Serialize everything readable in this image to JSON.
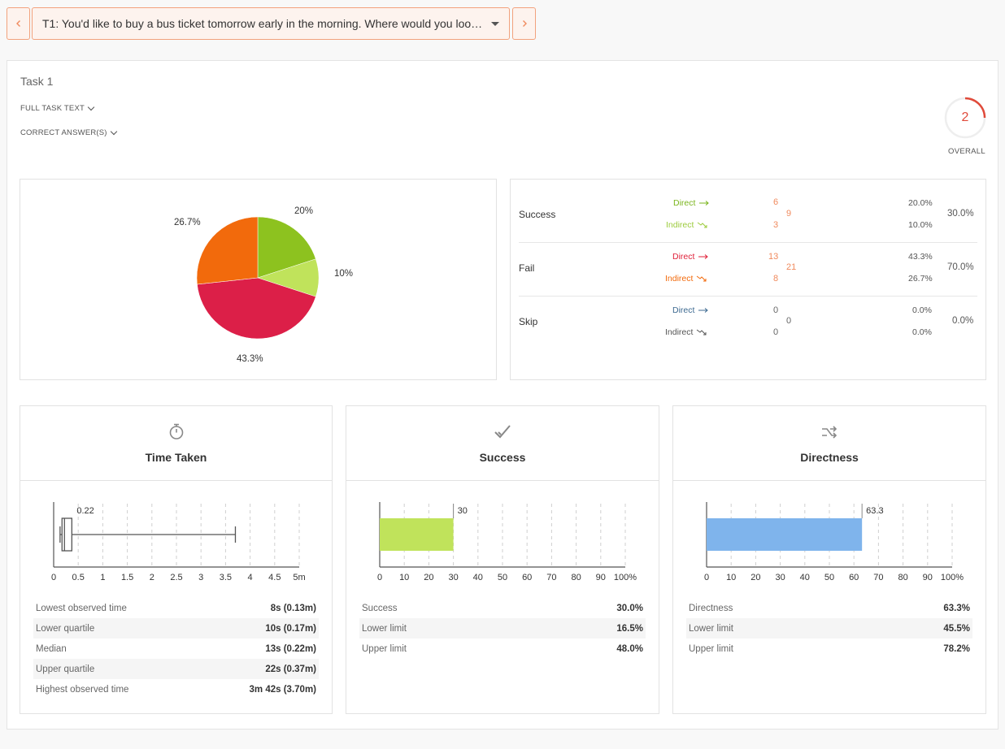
{
  "nav": {
    "task_select": "T1: You'd like to buy a bus ticket tomorrow early in the morning. Where would you loo…"
  },
  "task": {
    "title": "Task 1",
    "full_task_text_label": "FULL TASK TEXT",
    "correct_answers_label": "CORRECT ANSWER(S)",
    "overall_score": "2",
    "overall_label": "OVERALL"
  },
  "colors": {
    "accent": "#f08a5d",
    "direct_success": "#8dc21f",
    "indirect_success": "#c0e35b",
    "direct_fail": "#dc1f48",
    "indirect_fail": "#f26a0c",
    "success_bar": "#c0e35b",
    "directness_bar": "#7fb4ec",
    "score": "#e04a3a"
  },
  "pie": {
    "slices": [
      {
        "label": "20%",
        "value": 20.0,
        "color": "#8dc21f"
      },
      {
        "label": "10%",
        "value": 10.0,
        "color": "#c0e35b"
      },
      {
        "label": "43.3%",
        "value": 43.3,
        "color": "#dc1f48"
      },
      {
        "label": "26.7%",
        "value": 26.7,
        "color": "#f26a0c"
      }
    ]
  },
  "results": [
    {
      "name": "Success",
      "total": "9",
      "total_pct": "30.0%",
      "direct": {
        "label": "Direct",
        "count": "6",
        "pct": "20.0%"
      },
      "indirect": {
        "label": "Indirect",
        "count": "3",
        "pct": "10.0%"
      }
    },
    {
      "name": "Fail",
      "total": "21",
      "total_pct": "70.0%",
      "direct": {
        "label": "Direct",
        "count": "13",
        "pct": "43.3%"
      },
      "indirect": {
        "label": "Indirect",
        "count": "8",
        "pct": "26.7%"
      }
    },
    {
      "name": "Skip",
      "total": "0",
      "total_pct": "0.0%",
      "direct": {
        "label": "Direct",
        "count": "0",
        "pct": "0.0%"
      },
      "indirect": {
        "label": "Indirect",
        "count": "0",
        "pct": "0.0%"
      }
    }
  ],
  "time_card": {
    "title": "Time Taken",
    "icon": "stopwatch-icon",
    "box": {
      "min": 0.13,
      "q1": 0.17,
      "median": 0.22,
      "q3": 0.37,
      "max": 3.7,
      "label": "0.22"
    },
    "ticks": [
      "0",
      "0.5",
      "1",
      "1.5",
      "2",
      "2.5",
      "3",
      "3.5",
      "4",
      "4.5",
      "5m"
    ],
    "xlim": [
      0,
      5
    ],
    "stats": [
      {
        "k": "Lowest observed time",
        "v": "8s (0.13m)"
      },
      {
        "k": "Lower quartile",
        "v": "10s (0.17m)"
      },
      {
        "k": "Median",
        "v": "13s (0.22m)"
      },
      {
        "k": "Upper quartile",
        "v": "22s (0.37m)"
      },
      {
        "k": "Highest observed time",
        "v": "3m 42s (3.70m)"
      }
    ]
  },
  "success_card": {
    "title": "Success",
    "icon": "check-icon",
    "value": 30,
    "value_label": "30",
    "ticks": [
      "0",
      "10",
      "20",
      "30",
      "40",
      "50",
      "60",
      "70",
      "80",
      "90",
      "100%"
    ],
    "stats": [
      {
        "k": "Success",
        "v": "30.0%"
      },
      {
        "k": "Lower limit",
        "v": "16.5%"
      },
      {
        "k": "Upper limit",
        "v": "48.0%"
      }
    ]
  },
  "directness_card": {
    "title": "Directness",
    "icon": "shuffle-icon",
    "value": 63.3,
    "value_label": "63.3",
    "ticks": [
      "0",
      "10",
      "20",
      "30",
      "40",
      "50",
      "60",
      "70",
      "80",
      "90",
      "100%"
    ],
    "stats": [
      {
        "k": "Directness",
        "v": "63.3%"
      },
      {
        "k": "Lower limit",
        "v": "45.5%"
      },
      {
        "k": "Upper limit",
        "v": "78.2%"
      }
    ]
  }
}
